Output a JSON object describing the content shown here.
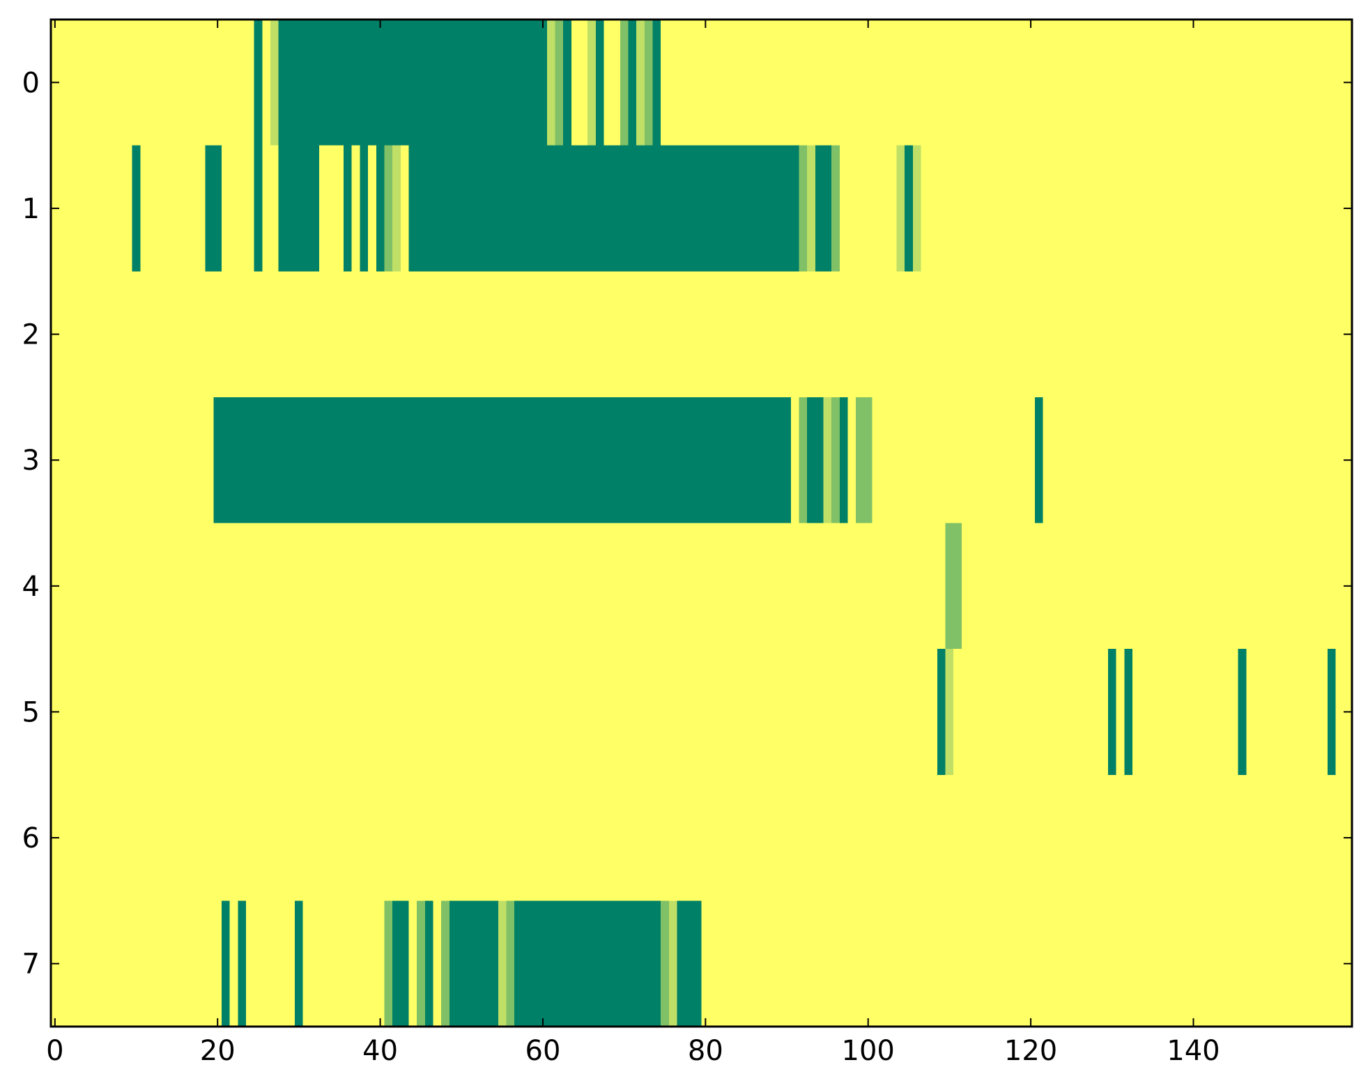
{
  "chart_data": {
    "type": "heatmap",
    "title": "",
    "xlabel": "",
    "ylabel": "",
    "xlim": [
      -0.5,
      159.5
    ],
    "ylim": [
      7.5,
      -0.5
    ],
    "x_ticks": [
      0,
      20,
      40,
      60,
      80,
      100,
      120,
      140
    ],
    "x_tick_labels": [
      "0",
      "20",
      "40",
      "60",
      "80",
      "100",
      "120",
      "140"
    ],
    "y_ticks": [
      0,
      1,
      2,
      3,
      4,
      5,
      6,
      7
    ],
    "y_tick_labels": [
      "0",
      "1",
      "2",
      "3",
      "4",
      "5",
      "6",
      "7"
    ],
    "grid": false,
    "colormap": "summer_r",
    "value_range": [
      0,
      1
    ],
    "background_value": 0,
    "colors": {
      "0": "#ffff66",
      "0.25": "#bfdf66",
      "0.5": "#80c066",
      "0.75": "#40a066",
      "1": "#008066"
    },
    "rows": [
      {
        "row": 0,
        "segments": [
          [
            25,
            25,
            1
          ],
          [
            27,
            27,
            0.25
          ],
          [
            28,
            60,
            1
          ],
          [
            61,
            61,
            0.25
          ],
          [
            62,
            62,
            0.5
          ],
          [
            63,
            63,
            1
          ],
          [
            66,
            66,
            0.25
          ],
          [
            67,
            67,
            1
          ],
          [
            70,
            70,
            0.5
          ],
          [
            71,
            71,
            1
          ],
          [
            72,
            72,
            0.25
          ],
          [
            73,
            73,
            0.5
          ],
          [
            74,
            74,
            1
          ]
        ]
      },
      {
        "row": 1,
        "segments": [
          [
            10,
            10,
            1
          ],
          [
            19,
            20,
            1
          ],
          [
            25,
            25,
            1
          ],
          [
            28,
            32,
            1
          ],
          [
            36,
            36,
            1
          ],
          [
            38,
            38,
            1
          ],
          [
            40,
            40,
            1
          ],
          [
            41,
            41,
            0.5
          ],
          [
            42,
            42,
            0.25
          ],
          [
            44,
            91,
            1
          ],
          [
            92,
            92,
            0.5
          ],
          [
            93,
            93,
            0.25
          ],
          [
            94,
            95,
            1
          ],
          [
            96,
            96,
            0.5
          ],
          [
            104,
            104,
            0.25
          ],
          [
            105,
            105,
            1
          ],
          [
            106,
            106,
            0.25
          ]
        ]
      },
      {
        "row": 2,
        "segments": []
      },
      {
        "row": 3,
        "segments": [
          [
            20,
            90,
            1
          ],
          [
            92,
            92,
            0.5
          ],
          [
            93,
            94,
            1
          ],
          [
            95,
            95,
            0.25
          ],
          [
            96,
            96,
            0.5
          ],
          [
            97,
            97,
            1
          ],
          [
            99,
            100,
            0.5
          ],
          [
            121,
            121,
            1
          ]
        ]
      },
      {
        "row": 4,
        "segments": [
          [
            110,
            111,
            0.5
          ]
        ]
      },
      {
        "row": 5,
        "segments": [
          [
            109,
            109,
            1
          ],
          [
            110,
            110,
            0.25
          ],
          [
            130,
            130,
            1
          ],
          [
            132,
            132,
            1
          ],
          [
            146,
            146,
            1
          ],
          [
            157,
            157,
            1
          ]
        ]
      },
      {
        "row": 6,
        "segments": []
      },
      {
        "row": 7,
        "segments": [
          [
            21,
            21,
            1
          ],
          [
            23,
            23,
            1
          ],
          [
            30,
            30,
            1
          ],
          [
            41,
            41,
            0.5
          ],
          [
            42,
            43,
            1
          ],
          [
            45,
            45,
            0.5
          ],
          [
            46,
            46,
            1
          ],
          [
            48,
            48,
            0.5
          ],
          [
            49,
            54,
            1
          ],
          [
            55,
            55,
            0.25
          ],
          [
            56,
            56,
            0.5
          ],
          [
            57,
            74,
            1
          ],
          [
            75,
            75,
            0.5
          ],
          [
            76,
            76,
            0.25
          ],
          [
            77,
            77,
            1
          ],
          [
            78,
            79,
            1
          ]
        ]
      }
    ]
  }
}
